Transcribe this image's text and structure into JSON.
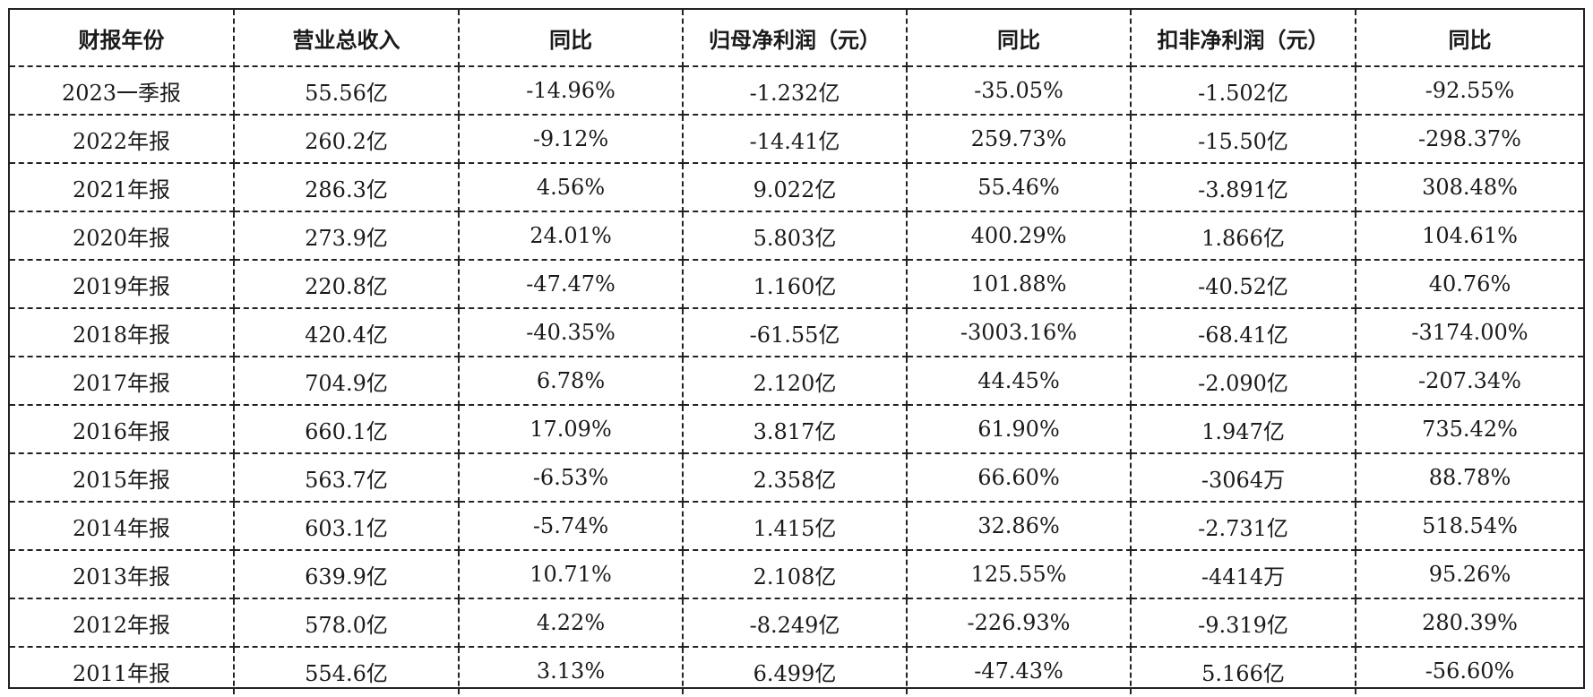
{
  "table": {
    "headers": [
      "财报年份",
      "营业总收入",
      "同比",
      "归母净利润（元）",
      "同比",
      "扣非净利润（元）",
      "同比"
    ],
    "rows": [
      [
        "2023一季报",
        "55.56亿",
        "-14.96%",
        "-1.232亿",
        "-35.05%",
        "-1.502亿",
        "-92.55%"
      ],
      [
        "2022年报",
        "260.2亿",
        "-9.12%",
        "-14.41亿",
        "259.73%",
        "-15.50亿",
        "-298.37%"
      ],
      [
        "2021年报",
        "286.3亿",
        "4.56%",
        "9.022亿",
        "55.46%",
        "-3.891亿",
        "308.48%"
      ],
      [
        "2020年报",
        "273.9亿",
        "24.01%",
        "5.803亿",
        "400.29%",
        "1.866亿",
        "104.61%"
      ],
      [
        "2019年报",
        "220.8亿",
        "-47.47%",
        "1.160亿",
        "101.88%",
        "-40.52亿",
        "40.76%"
      ],
      [
        "2018年报",
        "420.4亿",
        "-40.35%",
        "-61.55亿",
        "-3003.16%",
        "-68.41亿",
        "-3174.00%"
      ],
      [
        "2017年报",
        "704.9亿",
        "6.78%",
        "2.120亿",
        "44.45%",
        "-2.090亿",
        "-207.34%"
      ],
      [
        "2016年报",
        "660.1亿",
        "17.09%",
        "3.817亿",
        "61.90%",
        "1.947亿",
        "735.42%"
      ],
      [
        "2015年报",
        "563.7亿",
        "-6.53%",
        "2.358亿",
        "66.60%",
        "-3064万",
        "88.78%"
      ],
      [
        "2014年报",
        "603.1亿",
        "-5.74%",
        "1.415亿",
        "32.86%",
        "-2.731亿",
        "518.54%"
      ],
      [
        "2013年报",
        "639.9亿",
        "10.71%",
        "2.108亿",
        "125.55%",
        "-4414万",
        "95.26%"
      ],
      [
        "2012年报",
        "578.0亿",
        "4.22%",
        "-8.249亿",
        "-226.93%",
        "-9.319亿",
        "280.39%"
      ],
      [
        "2011年报",
        "554.6亿",
        "3.13%",
        "6.499亿",
        "-47.43%",
        "5.166亿",
        "-56.60%"
      ]
    ]
  }
}
